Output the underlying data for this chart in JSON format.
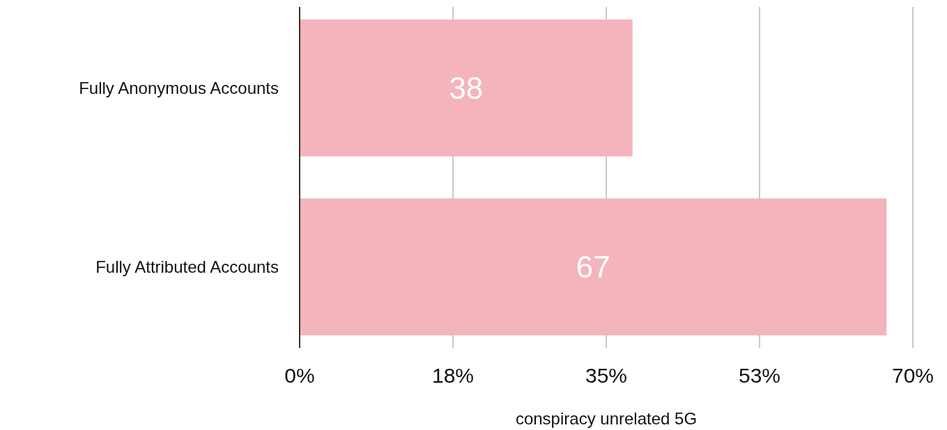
{
  "chart_data": {
    "type": "bar",
    "orientation": "horizontal",
    "categories": [
      "Fully Anonymous Accounts",
      "Fully Attributed Accounts"
    ],
    "values": [
      38,
      67
    ],
    "color": "#f4b4bb",
    "data_labels": true,
    "xlabel": "conspiracy unrelated 5G",
    "xlim": [
      0,
      70
    ],
    "xticks": [
      {
        "value": 0,
        "label": "0%"
      },
      {
        "value": 17.5,
        "label": "18%"
      },
      {
        "value": 35,
        "label": "35%"
      },
      {
        "value": 52.5,
        "label": "53%"
      },
      {
        "value": 70,
        "label": "70%"
      }
    ],
    "grid": "x"
  }
}
